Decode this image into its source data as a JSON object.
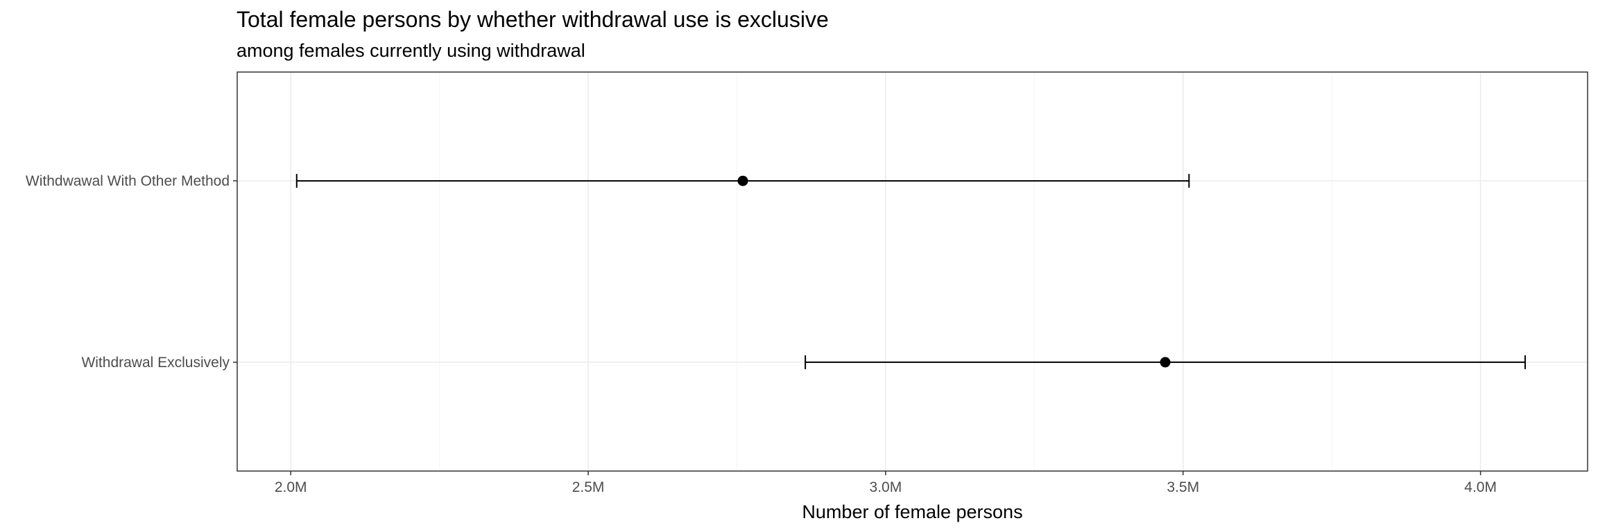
{
  "chart_data": {
    "type": "errorbar",
    "title": "Total female persons by whether withdrawal use is exclusive",
    "subtitle": "among females currently using withdrawal",
    "xlabel": "Number of female persons",
    "ylabel": "",
    "xlim": [
      1.91,
      4.18
    ],
    "xticks": [
      2.0,
      2.5,
      3.0,
      3.5,
      4.0
    ],
    "xtick_labels": [
      "2.0M",
      "2.5M",
      "3.0M",
      "3.5M",
      "4.0M"
    ],
    "x_unit": "M",
    "grid": true,
    "categories": [
      "Withdwawal With Other Method",
      "Withdrawal Exclusively"
    ],
    "estimates": [
      2.76,
      3.47
    ],
    "lower": [
      2.01,
      2.865
    ],
    "upper": [
      3.51,
      4.075
    ],
    "colors": {
      "panel_border": "#333333",
      "grid_major": "#ebebeb",
      "grid_minor": "#f5f5f5",
      "point": "#000000",
      "errorbar": "#000000",
      "tick_text": "#4d4d4d"
    }
  }
}
